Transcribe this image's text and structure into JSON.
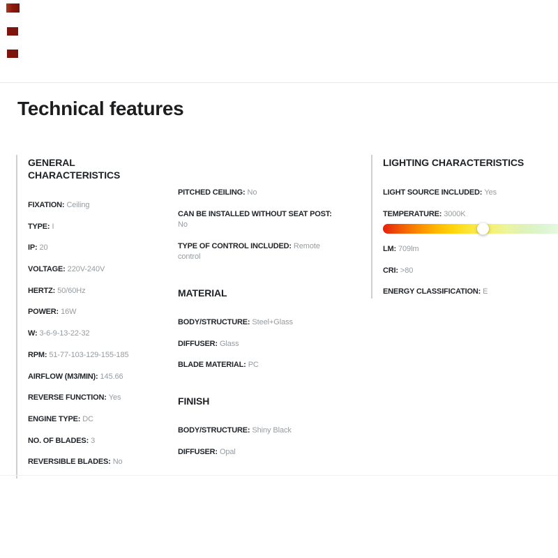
{
  "page": {
    "title": "Technical features"
  },
  "artifact_marks": {
    "color": "#7d150c",
    "count": 3
  },
  "columns": {
    "general": {
      "heading": "GENERAL CHARACTERISTICS",
      "items": [
        {
          "label": "FIXATION:",
          "value": "Ceiling"
        },
        {
          "label": "TYPE:",
          "value": "I"
        },
        {
          "label": "IP:",
          "value": "20"
        },
        {
          "label": "VOLTAGE:",
          "value": "220V-240V"
        },
        {
          "label": "HERTZ:",
          "value": "50/60Hz"
        },
        {
          "label": "POWER:",
          "value": "16W"
        },
        {
          "label": "W:",
          "value": "3-6-9-13-22-32"
        },
        {
          "label": "RPM:",
          "value": "51-77-103-129-155-185"
        },
        {
          "label": "AIRFLOW (M3/MIN):",
          "value": "145.66"
        },
        {
          "label": "REVERSE FUNCTION:",
          "value": "Yes"
        },
        {
          "label": "ENGINE TYPE:",
          "value": "DC"
        },
        {
          "label": "NO. OF BLADES:",
          "value": "3"
        },
        {
          "label": "REVERSIBLE BLADES:",
          "value": "No"
        }
      ]
    },
    "middle": {
      "groups": [
        {
          "heading": "",
          "items": [
            {
              "label": "PITCHED CEILING:",
              "value": "No"
            },
            {
              "label": "CAN BE INSTALLED WITHOUT SEAT POST:",
              "value": "No",
              "wrap": true
            },
            {
              "label": "TYPE OF CONTROL INCLUDED:",
              "value": "Remote control"
            }
          ]
        },
        {
          "heading": "MATERIAL",
          "items": [
            {
              "label": "BODY/STRUCTURE:",
              "value": "Steel+Glass"
            },
            {
              "label": "DIFFUSER:",
              "value": "Glass"
            },
            {
              "label": "BLADE MATERIAL:",
              "value": "PC"
            }
          ]
        },
        {
          "heading": "FINISH",
          "items": [
            {
              "label": "BODY/STRUCTURE:",
              "value": "Shiny Black"
            },
            {
              "label": "DIFFUSER:",
              "value": "Opal"
            }
          ]
        }
      ]
    },
    "lighting": {
      "heading": "LIGHTING CHARACTERISTICS",
      "items_top": [
        {
          "label": "LIGHT SOURCE INCLUDED:",
          "value": "Yes"
        },
        {
          "label": "TEMPERATURE:",
          "value": "3000K"
        }
      ],
      "slider": {
        "knob_position_pct": 56.9,
        "colors": [
          "#e5200e",
          "#f15905",
          "#fb8b00",
          "#ffb700",
          "#ffd60d",
          "#fbe73e",
          "#f7f06e",
          "#ecf49c",
          "#def2ba",
          "#dbf5cf",
          "#e6fae2"
        ]
      },
      "items_bottom": [
        {
          "label": "LM:",
          "value": "709lm"
        },
        {
          "label": "CRI:",
          "value": ">80"
        },
        {
          "label": "ENERGY CLASSIFICATION:",
          "value": "E"
        }
      ]
    }
  }
}
